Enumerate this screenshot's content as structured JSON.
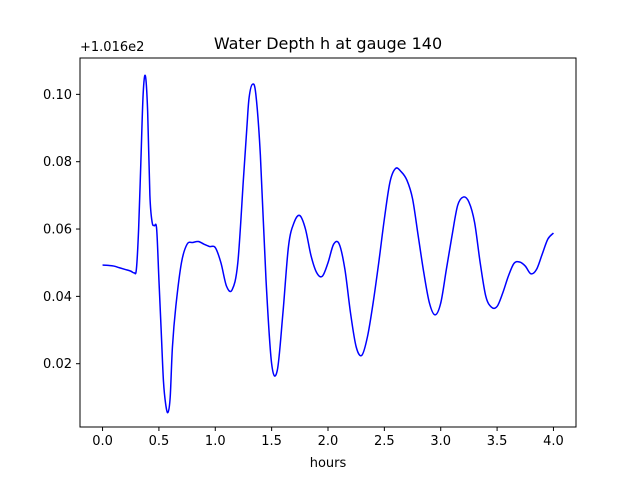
{
  "chart_data": {
    "type": "line",
    "title": "Water Depth h at gauge 140",
    "xlabel": "hours",
    "ylabel": "",
    "y_offset_label": "+1.016e2",
    "xlim": [
      -0.2,
      4.2
    ],
    "ylim": [
      0.0012,
      0.1108
    ],
    "x_ticks": [
      0.0,
      0.5,
      1.0,
      1.5,
      2.0,
      2.5,
      3.0,
      3.5,
      4.0
    ],
    "x_tick_labels": [
      "0.0",
      "0.5",
      "1.0",
      "1.5",
      "2.0",
      "2.5",
      "3.0",
      "3.5",
      "4.0"
    ],
    "y_ticks": [
      0.02,
      0.04,
      0.06,
      0.08,
      0.1
    ],
    "y_tick_labels": [
      "0.02",
      "0.04",
      "0.06",
      "0.08",
      "0.10"
    ],
    "grid": false,
    "series": [
      {
        "color": "#0000ff",
        "x": [
          0.0,
          0.05,
          0.1,
          0.15,
          0.2,
          0.25,
          0.28,
          0.3,
          0.32,
          0.34,
          0.36,
          0.38,
          0.4,
          0.42,
          0.44,
          0.46,
          0.48,
          0.5,
          0.52,
          0.54,
          0.56,
          0.58,
          0.6,
          0.62,
          0.65,
          0.7,
          0.75,
          0.8,
          0.85,
          0.9,
          0.95,
          1.0,
          1.05,
          1.1,
          1.15,
          1.2,
          1.25,
          1.28,
          1.3,
          1.33,
          1.36,
          1.4,
          1.45,
          1.5,
          1.55,
          1.6,
          1.65,
          1.7,
          1.75,
          1.8,
          1.85,
          1.9,
          1.95,
          2.0,
          2.05,
          2.1,
          2.15,
          2.2,
          2.25,
          2.3,
          2.35,
          2.4,
          2.45,
          2.5,
          2.55,
          2.6,
          2.65,
          2.7,
          2.75,
          2.8,
          2.85,
          2.9,
          2.95,
          3.0,
          3.05,
          3.1,
          3.15,
          3.2,
          3.25,
          3.3,
          3.35,
          3.4,
          3.45,
          3.5,
          3.55,
          3.6,
          3.65,
          3.7,
          3.75,
          3.8,
          3.85,
          3.9,
          3.95,
          4.0
        ],
        "y": [
          0.0493,
          0.0492,
          0.049,
          0.0485,
          0.048,
          0.0475,
          0.047,
          0.048,
          0.06,
          0.08,
          0.1,
          0.1055,
          0.095,
          0.07,
          0.062,
          0.061,
          0.06,
          0.045,
          0.03,
          0.015,
          0.008,
          0.0055,
          0.01,
          0.025,
          0.037,
          0.05,
          0.0555,
          0.056,
          0.0563,
          0.0555,
          0.0548,
          0.0545,
          0.05,
          0.043,
          0.042,
          0.05,
          0.075,
          0.09,
          0.099,
          0.103,
          0.1,
          0.082,
          0.045,
          0.02,
          0.018,
          0.035,
          0.055,
          0.062,
          0.064,
          0.06,
          0.052,
          0.047,
          0.046,
          0.05,
          0.0555,
          0.0555,
          0.048,
          0.035,
          0.025,
          0.0225,
          0.028,
          0.038,
          0.05,
          0.063,
          0.074,
          0.078,
          0.077,
          0.0745,
          0.069,
          0.058,
          0.047,
          0.038,
          0.0345,
          0.038,
          0.048,
          0.058,
          0.067,
          0.0695,
          0.068,
          0.062,
          0.05,
          0.04,
          0.0368,
          0.037,
          0.041,
          0.046,
          0.0498,
          0.0502,
          0.049,
          0.0467,
          0.048,
          0.0525,
          0.057,
          0.0588
        ]
      }
    ]
  }
}
